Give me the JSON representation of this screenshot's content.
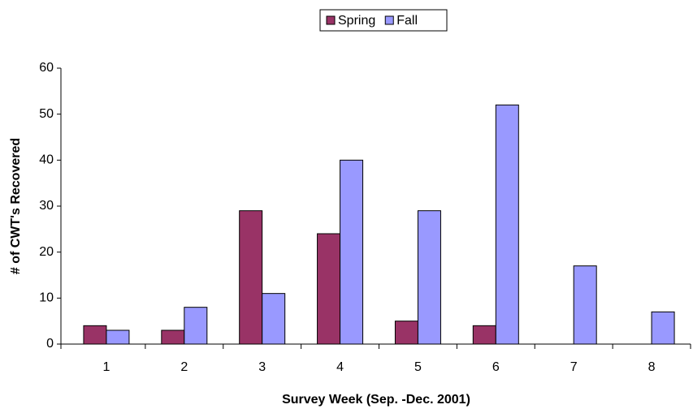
{
  "chart_data": {
    "type": "bar",
    "x_label": "Survey Week (Sep. -Dec. 2001)",
    "y_label": "# of CWT's Recovered",
    "categories": [
      "1",
      "2",
      "3",
      "4",
      "5",
      "6",
      "7",
      "8"
    ],
    "series": [
      {
        "name": "Spring",
        "color": "#993366",
        "values": [
          4,
          3,
          29,
          24,
          5,
          4,
          0,
          0
        ]
      },
      {
        "name": "Fall",
        "color": "#9999FF",
        "values": [
          3,
          8,
          11,
          40,
          29,
          52,
          17,
          7
        ]
      }
    ],
    "ylim": [
      0,
      60
    ],
    "yticks": [
      0,
      10,
      20,
      30,
      40,
      50,
      60
    ],
    "grid": false,
    "legend": "top"
  }
}
